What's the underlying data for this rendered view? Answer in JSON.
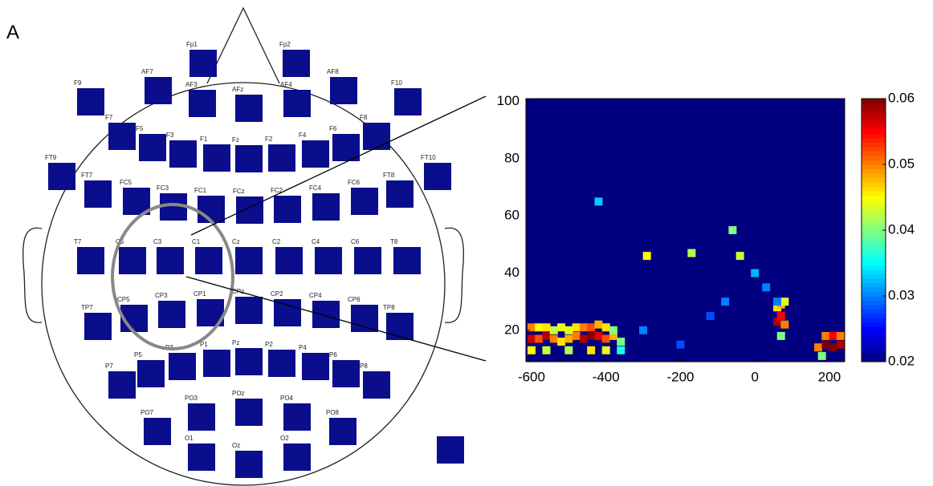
{
  "panel_label": "A",
  "electrodes": [
    "Fp1",
    "Fp2",
    "F9",
    "AF7",
    "AF3",
    "AFz",
    "AF4",
    "AF8",
    "F10",
    "F7",
    "F5",
    "F3",
    "F1",
    "Fz",
    "F2",
    "F4",
    "F6",
    "F8",
    "FT9",
    "FT7",
    "FC5",
    "FC3",
    "FC1",
    "FCz",
    "FC2",
    "FC4",
    "FC6",
    "FT8",
    "FT10",
    "T7",
    "C5",
    "C3",
    "C1",
    "Cz",
    "C2",
    "C4",
    "C6",
    "T8",
    "TP7",
    "CP5",
    "CP3",
    "CP1",
    "CPz",
    "CP2",
    "CP4",
    "CP6",
    "TP8",
    "P7",
    "P5",
    "P3",
    "P1",
    "Pz",
    "P2",
    "P4",
    "P6",
    "P8",
    "PO7",
    "PO3",
    "POz",
    "PO4",
    "PO8",
    "O1",
    "Oz",
    "O2"
  ],
  "chart_data": {
    "type": "heatmap",
    "xlim": [
      -615,
      241
    ],
    "ylim": [
      9,
      101
    ],
    "xticks": [
      -600,
      -400,
      -200,
      0,
      200
    ],
    "yticks": [
      20,
      40,
      60,
      80,
      100
    ],
    "clim": [
      0.02,
      0.06
    ],
    "cticks": [
      0.02,
      0.03,
      0.04,
      0.05,
      0.06
    ],
    "background": 0.02,
    "x": [
      -600,
      -580,
      -560,
      -540,
      -520,
      -500,
      -480,
      -460,
      -440,
      -420,
      -400,
      -380,
      -360,
      -600,
      -580,
      -560,
      -540,
      -520,
      -500,
      -480,
      -460,
      -440,
      -420,
      -400,
      -380,
      -600,
      -560,
      -500,
      -440,
      -400,
      -360,
      60,
      70,
      80,
      60,
      70,
      80,
      70,
      170,
      190,
      210,
      230,
      190,
      210,
      230,
      180,
      -290,
      -170,
      -60,
      -40,
      -420,
      0,
      30,
      60,
      -120,
      -80,
      -300,
      -200
    ],
    "y": [
      17,
      17,
      18,
      17,
      16,
      17,
      18,
      17,
      18,
      18,
      17,
      18,
      16,
      21,
      21,
      21,
      20,
      21,
      20,
      21,
      21,
      21,
      22,
      21,
      20,
      13,
      13,
      13,
      13,
      13,
      13,
      23,
      25,
      22,
      28,
      29,
      30,
      18,
      14,
      15,
      14,
      15,
      18,
      18,
      18,
      11,
      46,
      47,
      55,
      46,
      65,
      40,
      35,
      30,
      25,
      30,
      20,
      15
    ],
    "values": [
      0.057,
      0.052,
      0.058,
      0.05,
      0.046,
      0.048,
      0.05,
      0.058,
      0.06,
      0.056,
      0.052,
      0.048,
      0.04,
      0.05,
      0.045,
      0.046,
      0.043,
      0.044,
      0.044,
      0.046,
      0.05,
      0.052,
      0.048,
      0.046,
      0.04,
      0.045,
      0.043,
      0.042,
      0.046,
      0.044,
      0.036,
      0.058,
      0.055,
      0.05,
      0.046,
      0.048,
      0.044,
      0.04,
      0.05,
      0.06,
      0.06,
      0.058,
      0.05,
      0.055,
      0.05,
      0.04,
      0.045,
      0.042,
      0.04,
      0.043,
      0.033,
      0.032,
      0.03,
      0.03,
      0.028,
      0.03,
      0.03,
      0.028
    ]
  }
}
